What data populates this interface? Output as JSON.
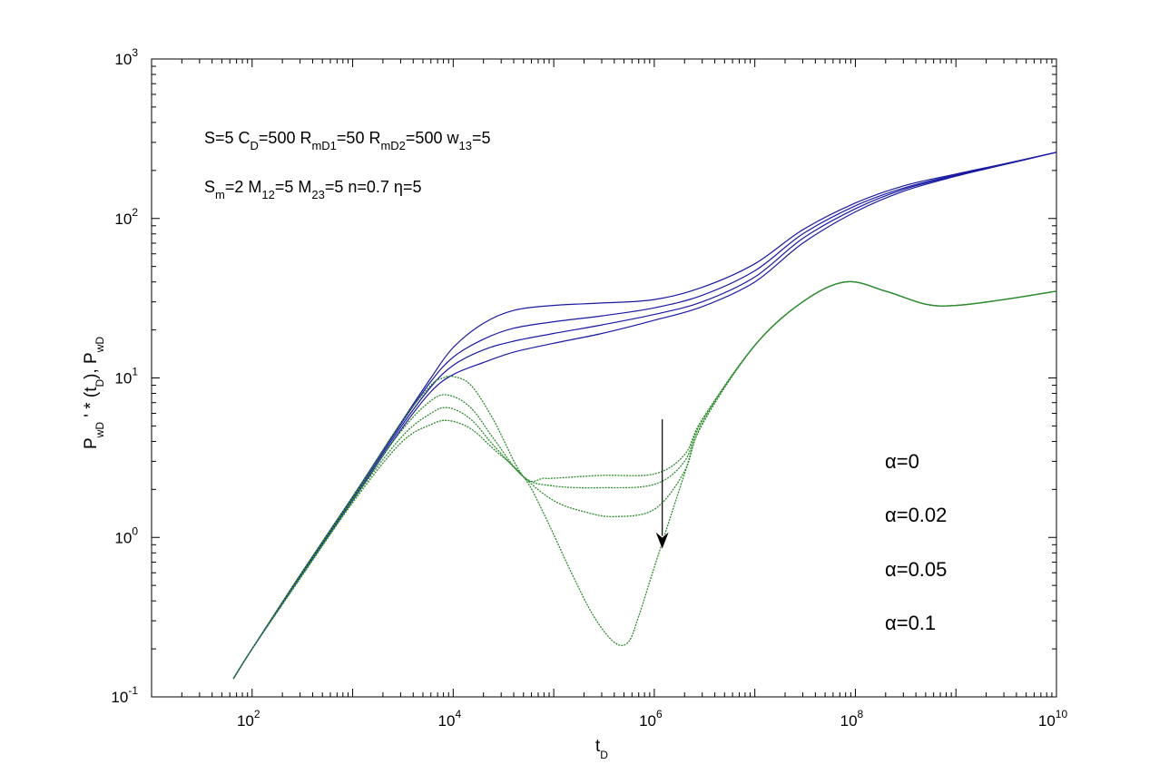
{
  "chart_data": {
    "type": "line",
    "xscale": "log",
    "yscale": "log",
    "xlim": [
      10,
      10000000000.0
    ],
    "ylim": [
      0.1,
      1000
    ],
    "xlabel": {
      "base": "t",
      "sub": "D"
    },
    "ylabel": {
      "p1": "P",
      "s1": "wD",
      "p2": " ' * (t",
      "s2": "D",
      "p3": "),  P",
      "s3": "wD"
    },
    "x_ticks": [
      {
        "base": "10",
        "exp": "2",
        "value": 100
      },
      {
        "base": "10",
        "exp": "4",
        "value": 10000
      },
      {
        "base": "10",
        "exp": "6",
        "value": 1000000
      },
      {
        "base": "10",
        "exp": "8",
        "value": 100000000
      },
      {
        "base": "10",
        "exp": "10",
        "value": 10000000000
      }
    ],
    "y_ticks": [
      {
        "base": "10",
        "exp": "-1",
        "value": 0.1
      },
      {
        "base": "10",
        "exp": "0",
        "value": 1
      },
      {
        "base": "10",
        "exp": "1",
        "value": 10
      },
      {
        "base": "10",
        "exp": "2",
        "value": 100
      },
      {
        "base": "10",
        "exp": "3",
        "value": 1000
      }
    ],
    "grid": false,
    "annotation_lines": [
      [
        {
          "t": "S=5  C"
        },
        {
          "t": "D",
          "sub": true
        },
        {
          "t": "=500  R"
        },
        {
          "t": "mD1",
          "sub": true
        },
        {
          "t": "=50  R"
        },
        {
          "t": "mD2",
          "sub": true
        },
        {
          "t": "=500  w"
        },
        {
          "t": "13",
          "sub": true
        },
        {
          "t": "=5"
        }
      ],
      [
        {
          "t": "S"
        },
        {
          "t": "m",
          "sub": true
        },
        {
          "t": "=2  M"
        },
        {
          "t": "12",
          "sub": true
        },
        {
          "t": "=5   M"
        },
        {
          "t": "23",
          "sub": true
        },
        {
          "t": "=5   n=0.7   η=5"
        }
      ]
    ],
    "legend": {
      "placement": "right",
      "entries": [
        "α=0",
        "α=0.02",
        "α=0.05",
        "α=0.1"
      ]
    },
    "arrow": {
      "from": [
        1200000,
        5.5
      ],
      "to": [
        1200000,
        0.85
      ]
    },
    "colors": {
      "pressure": "#1a1aa0",
      "derivative": "#2e8b2e",
      "axes": "#000000"
    },
    "pressure_series": [
      {
        "alpha": 0,
        "points": [
          [
            65,
            0.13
          ],
          [
            100,
            0.2
          ],
          [
            300,
            0.58
          ],
          [
            1000,
            1.8
          ],
          [
            3000,
            5.2
          ],
          [
            6000,
            10
          ],
          [
            10000,
            15.5
          ],
          [
            20000,
            22
          ],
          [
            40000,
            26.5
          ],
          [
            100000,
            28.5
          ],
          [
            300000,
            29.5
          ],
          [
            1000000,
            31
          ],
          [
            3000000,
            37
          ],
          [
            10000000,
            52
          ],
          [
            30000000,
            85
          ],
          [
            100000000,
            125
          ],
          [
            300000000,
            160
          ],
          [
            1000000000,
            190
          ],
          [
            3000000000,
            220
          ],
          [
            10000000000,
            260
          ]
        ]
      },
      {
        "alpha": 0.02,
        "points": [
          [
            65,
            0.13
          ],
          [
            100,
            0.2
          ],
          [
            300,
            0.58
          ],
          [
            1000,
            1.8
          ],
          [
            3000,
            5.1
          ],
          [
            6000,
            9.5
          ],
          [
            10000,
            13.5
          ],
          [
            20000,
            17.5
          ],
          [
            40000,
            20.5
          ],
          [
            100000,
            22.5
          ],
          [
            300000,
            24.5
          ],
          [
            1000000,
            27.5
          ],
          [
            3000000,
            33
          ],
          [
            10000000,
            47
          ],
          [
            30000000,
            80
          ],
          [
            100000000,
            120
          ],
          [
            300000000,
            155
          ],
          [
            1000000000,
            188
          ],
          [
            3000000000,
            219
          ],
          [
            10000000000,
            260
          ]
        ]
      },
      {
        "alpha": 0.05,
        "points": [
          [
            65,
            0.13
          ],
          [
            100,
            0.2
          ],
          [
            300,
            0.57
          ],
          [
            1000,
            1.75
          ],
          [
            3000,
            4.9
          ],
          [
            6000,
            8.8
          ],
          [
            10000,
            12
          ],
          [
            20000,
            15
          ],
          [
            40000,
            17
          ],
          [
            100000,
            19
          ],
          [
            300000,
            21.5
          ],
          [
            1000000,
            25
          ],
          [
            3000000,
            30
          ],
          [
            10000000,
            43
          ],
          [
            30000000,
            75
          ],
          [
            100000000,
            115
          ],
          [
            300000000,
            152
          ],
          [
            1000000000,
            186
          ],
          [
            3000000000,
            218
          ],
          [
            10000000000,
            260
          ]
        ]
      },
      {
        "alpha": 0.1,
        "points": [
          [
            65,
            0.13
          ],
          [
            100,
            0.2
          ],
          [
            300,
            0.56
          ],
          [
            1000,
            1.7
          ],
          [
            3000,
            4.7
          ],
          [
            6000,
            8.2
          ],
          [
            10000,
            10.5
          ],
          [
            20000,
            12.5
          ],
          [
            40000,
            14.5
          ],
          [
            100000,
            16.5
          ],
          [
            300000,
            19
          ],
          [
            1000000,
            23
          ],
          [
            3000000,
            28
          ],
          [
            10000000,
            40
          ],
          [
            30000000,
            70
          ],
          [
            100000000,
            110
          ],
          [
            300000000,
            148
          ],
          [
            1000000000,
            184
          ],
          [
            3000000000,
            217
          ],
          [
            10000000000,
            260
          ]
        ]
      }
    ],
    "derivative_series": [
      {
        "alpha": 0,
        "points": [
          [
            65,
            0.13
          ],
          [
            100,
            0.2
          ],
          [
            300,
            0.58
          ],
          [
            1000,
            1.8
          ],
          [
            3000,
            5.2
          ],
          [
            6000,
            9
          ],
          [
            8000,
            10
          ],
          [
            10000,
            10.2
          ],
          [
            15000,
            9
          ],
          [
            25000,
            5.5
          ],
          [
            50000,
            2.4
          ],
          [
            80000,
            2.35
          ],
          [
            100000,
            2.35
          ],
          [
            300000,
            2.45
          ],
          [
            1000000,
            2.5
          ],
          [
            2000000,
            3.3
          ],
          [
            3000000,
            5.5
          ],
          [
            10000000,
            16
          ],
          [
            30000000,
            30
          ],
          [
            80000000,
            40
          ],
          [
            200000000,
            35
          ],
          [
            500000000,
            29
          ],
          [
            1000000000,
            28.5
          ],
          [
            3000000000,
            31
          ],
          [
            10000000000,
            35
          ]
        ]
      },
      {
        "alpha": 0.02,
        "points": [
          [
            65,
            0.13
          ],
          [
            100,
            0.2
          ],
          [
            300,
            0.57
          ],
          [
            1000,
            1.75
          ],
          [
            3000,
            4.6
          ],
          [
            6000,
            7.2
          ],
          [
            9000,
            7.8
          ],
          [
            15000,
            6.5
          ],
          [
            25000,
            4.2
          ],
          [
            50000,
            2.4
          ],
          [
            100000,
            2.1
          ],
          [
            300000,
            2.05
          ],
          [
            1000000,
            2.15
          ],
          [
            2000000,
            3
          ],
          [
            3000000,
            5.4
          ],
          [
            10000000,
            16
          ],
          [
            30000000,
            30
          ],
          [
            80000000,
            40
          ],
          [
            200000000,
            35
          ],
          [
            500000000,
            29
          ],
          [
            1000000000,
            28.5
          ],
          [
            3000000000,
            31
          ],
          [
            10000000000,
            35
          ]
        ]
      },
      {
        "alpha": 0.05,
        "points": [
          [
            65,
            0.13
          ],
          [
            100,
            0.2
          ],
          [
            300,
            0.56
          ],
          [
            1000,
            1.7
          ],
          [
            3000,
            4.2
          ],
          [
            6000,
            6
          ],
          [
            9000,
            6.5
          ],
          [
            15000,
            5.5
          ],
          [
            25000,
            3.8
          ],
          [
            50000,
            2.4
          ],
          [
            100000,
            1.7
          ],
          [
            200000,
            1.45
          ],
          [
            400000,
            1.35
          ],
          [
            1000000,
            1.5
          ],
          [
            2000000,
            2.6
          ],
          [
            3000000,
            5.2
          ],
          [
            10000000,
            16
          ],
          [
            30000000,
            30
          ],
          [
            80000000,
            40
          ],
          [
            200000000,
            35
          ],
          [
            500000000,
            29
          ],
          [
            1000000000,
            28.5
          ],
          [
            3000000000,
            31
          ],
          [
            10000000000,
            35
          ]
        ]
      },
      {
        "alpha": 0.1,
        "points": [
          [
            65,
            0.13
          ],
          [
            100,
            0.2
          ],
          [
            300,
            0.55
          ],
          [
            1000,
            1.65
          ],
          [
            3000,
            3.9
          ],
          [
            6000,
            5.1
          ],
          [
            9000,
            5.4
          ],
          [
            15000,
            4.8
          ],
          [
            25000,
            3.6
          ],
          [
            50000,
            2.4
          ],
          [
            80000,
            1.4
          ],
          [
            150000,
            0.6
          ],
          [
            250000,
            0.32
          ],
          [
            400000,
            0.22
          ],
          [
            550000,
            0.22
          ],
          [
            700000,
            0.32
          ],
          [
            1000000,
            0.65
          ],
          [
            2000000,
            2.5
          ],
          [
            3000000,
            5.1
          ],
          [
            10000000,
            16
          ],
          [
            30000000,
            30
          ],
          [
            80000000,
            40
          ],
          [
            200000000,
            35
          ],
          [
            500000000,
            29
          ],
          [
            1000000000,
            28.5
          ],
          [
            3000000000,
            31
          ],
          [
            10000000000,
            35
          ]
        ]
      }
    ]
  }
}
